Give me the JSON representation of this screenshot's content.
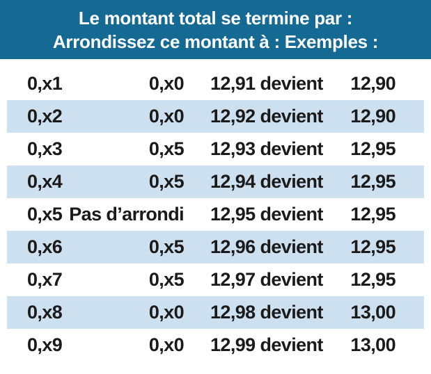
{
  "header": {
    "line1": "Le montant total se termine par :",
    "line2": "Arrondissez ce montant à : Exemples :"
  },
  "rows": [
    {
      "ending": "0,x1",
      "round_to": "0,x0",
      "example": "12,91 devient",
      "result": "12,90"
    },
    {
      "ending": "0,x2",
      "round_to": "0,x0",
      "example": "12,92 devient",
      "result": "12,90"
    },
    {
      "ending": "0,x3",
      "round_to": "0,x5",
      "example": "12,93 devient",
      "result": "12,95"
    },
    {
      "ending": "0,x4",
      "round_to": "0,x5",
      "example": "12,94 devient",
      "result": "12,95"
    },
    {
      "ending": "0,x5",
      "round_to": "Pas d’arrondi",
      "example": "12,95 devient",
      "result": "12,95"
    },
    {
      "ending": "0,x6",
      "round_to": "0,x5",
      "example": "12,96 devient",
      "result": "12,95"
    },
    {
      "ending": "0,x7",
      "round_to": "0,x5",
      "example": "12,97 devient",
      "result": "12,95"
    },
    {
      "ending": "0,x8",
      "round_to": "0,x0",
      "example": "12,98 devient",
      "result": "13,00"
    },
    {
      "ending": "0,x9",
      "round_to": "0,x0",
      "example": "12,99 devient",
      "result": "13,00"
    }
  ],
  "colors": {
    "header_bg": "#156a94",
    "header_text": "#ffffff",
    "shaded_row": "#cde0ef",
    "text": "#1a1a1a"
  }
}
